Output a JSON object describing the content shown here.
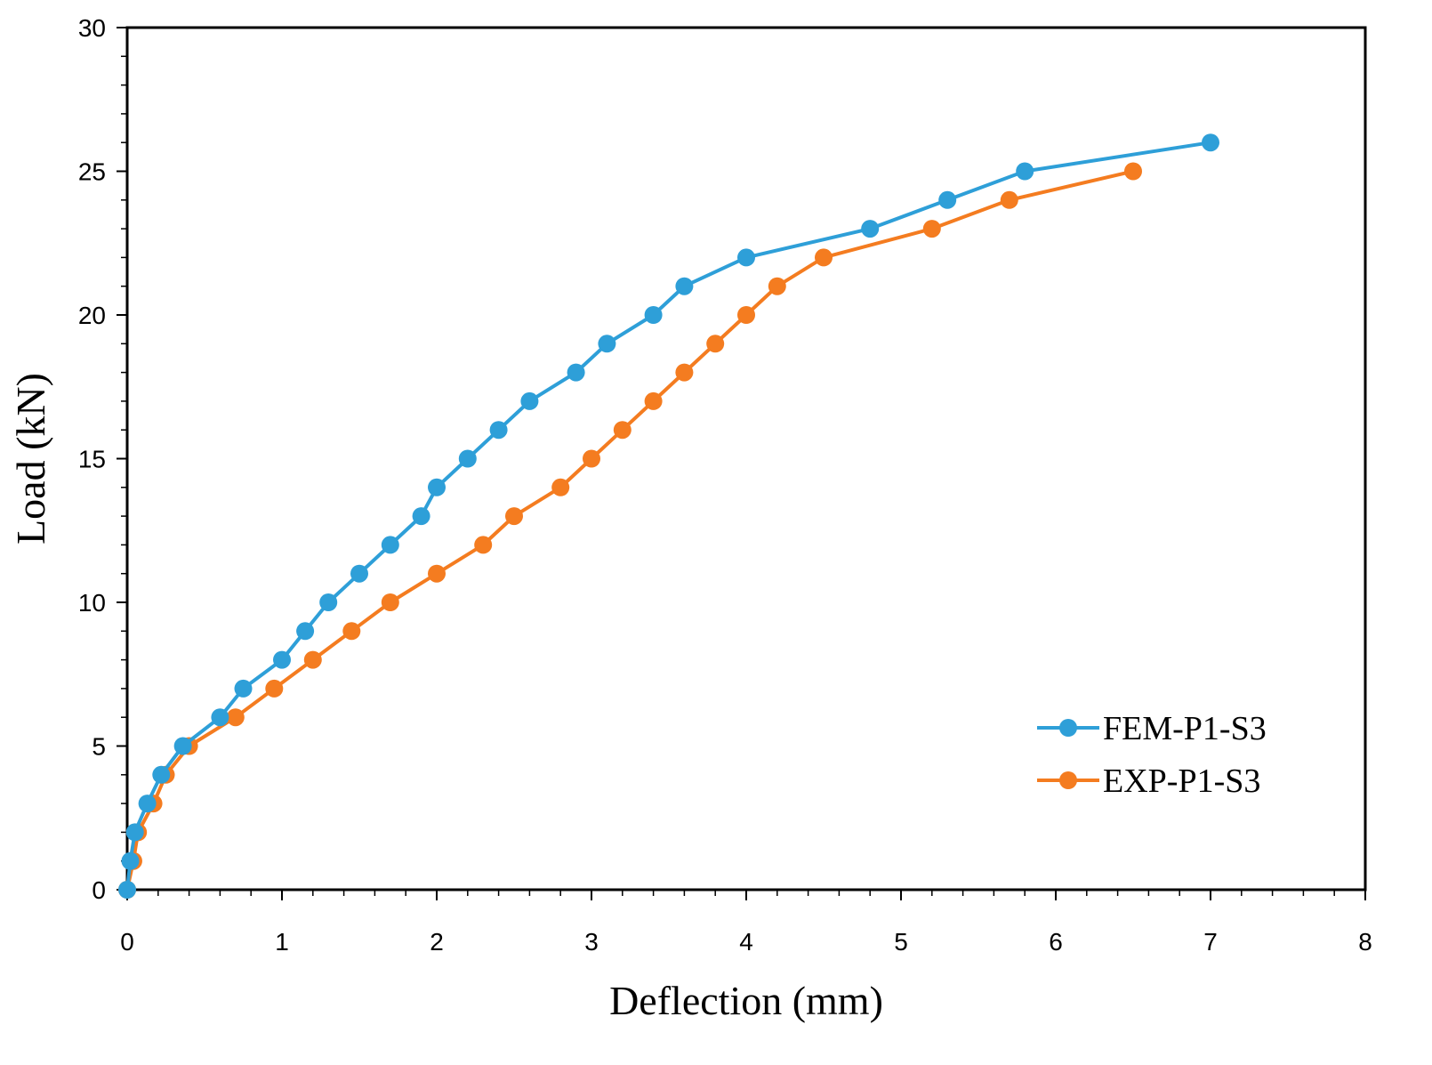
{
  "chart_data": {
    "type": "line",
    "title": "",
    "xlabel": "Deflection (mm)",
    "ylabel": "Load (kN)",
    "xlim": [
      0,
      8
    ],
    "ylim": [
      0,
      30
    ],
    "xticks": [
      "0",
      "1",
      "2",
      "3",
      "4",
      "5",
      "6",
      "7",
      "8"
    ],
    "yticks": [
      "0",
      "5",
      "10",
      "15",
      "20",
      "25",
      "30"
    ],
    "grid": false,
    "legend_position": "bottom-right",
    "series": [
      {
        "name": "FEM-P1-S3",
        "color": "#2E9FD8",
        "x": [
          0,
          0.02,
          0.05,
          0.13,
          0.22,
          0.36,
          0.6,
          0.75,
          1.0,
          1.15,
          1.3,
          1.5,
          1.7,
          1.9,
          2.0,
          2.2,
          2.4,
          2.6,
          2.9,
          3.1,
          3.4,
          3.6,
          4.0,
          4.8,
          5.3,
          5.8,
          7.0
        ],
        "y": [
          0,
          1,
          2,
          3,
          4,
          5,
          6,
          7,
          8,
          9,
          10,
          11,
          12,
          13,
          14,
          15,
          16,
          17,
          18,
          19,
          20,
          21,
          22,
          23,
          24,
          25,
          26
        ]
      },
      {
        "name": "EXP-P1-S3",
        "color": "#F47C20",
        "x": [
          0,
          0.04,
          0.07,
          0.17,
          0.25,
          0.4,
          0.7,
          0.95,
          1.2,
          1.45,
          1.7,
          2.0,
          2.3,
          2.5,
          2.8,
          3.0,
          3.2,
          3.4,
          3.6,
          3.8,
          4.0,
          4.2,
          4.5,
          5.2,
          5.7,
          6.5
        ],
        "y": [
          0,
          1,
          2,
          3,
          4,
          5,
          6,
          7,
          8,
          9,
          10,
          11,
          12,
          13,
          14,
          15,
          16,
          17,
          18,
          19,
          20,
          21,
          22,
          23,
          24,
          25
        ]
      }
    ]
  }
}
